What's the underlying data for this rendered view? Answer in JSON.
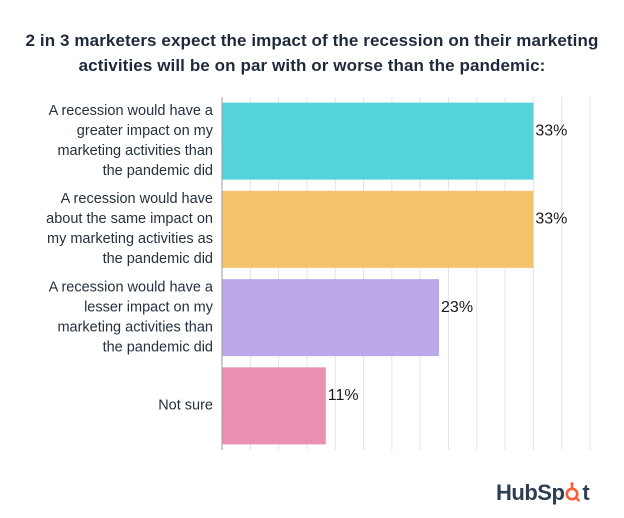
{
  "title": {
    "line1": "2 in 3 marketers expect the impact of the recession on their marketing",
    "line2": "activities will be on par with or worse than the pandemic:"
  },
  "chart_data": {
    "type": "bar",
    "orientation": "horizontal",
    "title": "2 in 3 marketers expect the impact of the recession on their marketing activities will be on par with or worse than the pandemic:",
    "categories": [
      "A recession would have a greater impact on my marketing activities than the pandemic did",
      "A recession would have about the same impact on my marketing activities as the pandemic did",
      "A recession would have a lesser impact on my marketing activities than the pandemic did",
      "Not sure"
    ],
    "category_lines": [
      [
        "A recession would have a",
        "greater impact on my",
        "marketing activities than",
        "the pandemic did"
      ],
      [
        "A recession would have",
        "about the same impact on",
        "my marketing activities as",
        "the pandemic did"
      ],
      [
        "A recession would have a",
        "lesser impact on my",
        "marketing activities than",
        "the pandemic did"
      ],
      [
        "Not sure"
      ]
    ],
    "values": [
      33,
      33,
      23,
      11
    ],
    "value_labels": [
      "33%",
      "33%",
      "23%",
      "11%"
    ],
    "colors": [
      "#56d4db",
      "#f4c36e",
      "#bca9ea",
      "#ea90b2"
    ],
    "gridline_color": "#e4e4e4",
    "xlim": [
      0,
      39
    ],
    "grid": true,
    "xlabel": "",
    "ylabel": ""
  },
  "logo": {
    "text_before": "HubSp",
    "text_after": "t",
    "accent_color": "#ff5c35",
    "text_color": "#2d3e50"
  }
}
